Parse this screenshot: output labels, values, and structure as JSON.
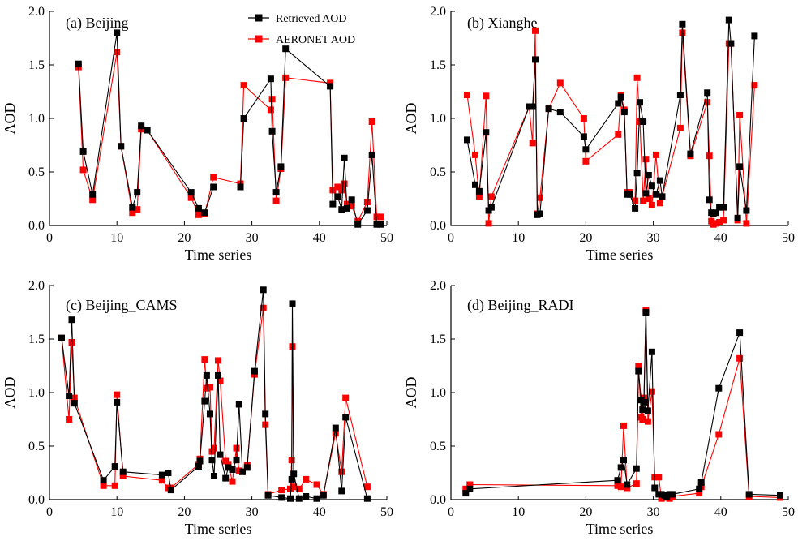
{
  "colors": {
    "retrieved": "#000000",
    "aeronet": "#ff0000"
  },
  "legend": {
    "entries": [
      "Retrieved AOD",
      "AERONET AOD"
    ]
  },
  "chart_data": [
    {
      "type": "line",
      "title": "(a) Beijing",
      "xlabel": "Time series",
      "ylabel": "AOD",
      "xlim": [
        0,
        50
      ],
      "ylim": [
        0,
        2.0
      ],
      "xticks": [
        0,
        10,
        20,
        30,
        40,
        50
      ],
      "yticks": [
        0.0,
        0.5,
        1.0,
        1.5,
        2.0
      ],
      "legend": "top-center",
      "series": [
        {
          "name": "Retrieved AOD",
          "x": [
            4.3,
            5,
            6.4,
            10,
            10.6,
            12.3,
            13,
            13.6,
            14.5,
            21,
            22.1,
            23,
            24.3,
            28.3,
            28.8,
            32.8,
            33,
            33.6,
            34.3,
            35,
            41.6,
            42,
            42.7,
            43.3,
            43.7,
            44.1,
            44.8,
            45.7,
            47.1,
            47.8,
            48.5,
            49.1
          ],
          "y": [
            1.51,
            0.69,
            0.29,
            1.8,
            0.74,
            0.17,
            0.31,
            0.93,
            0.89,
            0.31,
            0.16,
            0.12,
            0.36,
            0.36,
            1.0,
            1.37,
            0.88,
            0.31,
            0.55,
            1.65,
            1.3,
            0.2,
            0.27,
            0.15,
            0.63,
            0.16,
            0.24,
            0.01,
            0.14,
            0.66,
            0.01,
            0.01
          ]
        },
        {
          "name": "AERONET AOD",
          "x": [
            4.3,
            5,
            6.4,
            10,
            10.6,
            12.3,
            13,
            13.6,
            14.5,
            21,
            22.1,
            23,
            24.3,
            28.3,
            28.8,
            32.8,
            33,
            33.6,
            34.3,
            35,
            41.6,
            42,
            42.7,
            43.3,
            43.7,
            44.1,
            44.8,
            45.7,
            47.1,
            47.8,
            48.5,
            49.1
          ],
          "y": [
            1.48,
            0.52,
            0.24,
            1.62,
            0.74,
            0.12,
            0.15,
            0.9,
            0.89,
            0.26,
            0.1,
            0.11,
            0.45,
            0.39,
            1.31,
            1.08,
            1.18,
            0.23,
            0.53,
            1.38,
            1.33,
            0.33,
            0.36,
            0.33,
            0.39,
            0.2,
            0.18,
            0.04,
            0.22,
            0.97,
            0.08,
            0.08
          ]
        }
      ]
    },
    {
      "type": "line",
      "title": "(b) Xianghe",
      "xlabel": "Time series",
      "ylabel": "AOD",
      "xlim": [
        0,
        50
      ],
      "ylim": [
        0,
        2.0
      ],
      "xticks": [
        0,
        10,
        20,
        30,
        40,
        50
      ],
      "yticks": [
        0.0,
        0.5,
        1.0,
        1.5,
        2.0
      ],
      "series": [
        {
          "name": "Retrieved AOD",
          "x": [
            2.4,
            3.6,
            4.2,
            5.2,
            5.6,
            6,
            11.6,
            12.1,
            12.5,
            12.8,
            13.2,
            14.5,
            16.2,
            19.7,
            20,
            24.8,
            25.2,
            25.7,
            26.1,
            26.5,
            27.3,
            27.6,
            28,
            28.5,
            28.9,
            29.3,
            29.8,
            30.4,
            31,
            31.3,
            34,
            34.3,
            35.5,
            38,
            38.3,
            38.6,
            38.9,
            39.3,
            39.8,
            40.4,
            41.2,
            41.5,
            42.5,
            42.8,
            43.8,
            45
          ],
          "y": [
            0.8,
            0.38,
            0.32,
            0.87,
            0.14,
            0.17,
            1.11,
            1.11,
            1.55,
            0.1,
            0.11,
            1.09,
            1.06,
            0.83,
            0.71,
            1.14,
            1.2,
            1.06,
            0.29,
            0.29,
            0.16,
            0.49,
            1.15,
            0.97,
            0.3,
            0.47,
            0.37,
            0.29,
            0.42,
            0.27,
            1.22,
            1.88,
            0.67,
            1.24,
            0.24,
            0.12,
            0.11,
            0.12,
            0.17,
            0.17,
            1.92,
            1.7,
            0.07,
            0.55,
            0.14,
            1.77
          ]
        },
        {
          "name": "AERONET AOD",
          "x": [
            2.4,
            3.6,
            4.2,
            5.2,
            5.6,
            6,
            11.6,
            12.1,
            12.5,
            12.8,
            13.2,
            14.5,
            16.2,
            19.7,
            20,
            24.8,
            25.2,
            25.7,
            26.1,
            26.5,
            27.3,
            27.6,
            28,
            28.5,
            28.9,
            29.3,
            29.8,
            30.4,
            31,
            31.3,
            34,
            34.3,
            35.5,
            38,
            38.3,
            38.6,
            38.9,
            39.3,
            39.8,
            40.4,
            41.2,
            41.5,
            42.5,
            42.8,
            43.8,
            45
          ],
          "y": [
            1.22,
            0.66,
            0.27,
            1.21,
            0.02,
            0.27,
            1.11,
            0.77,
            1.82,
            0.11,
            0.26,
            1.09,
            1.33,
            1.0,
            0.6,
            0.85,
            1.22,
            1.08,
            0.31,
            0.31,
            0.23,
            1.38,
            0.97,
            0.23,
            0.62,
            0.25,
            0.19,
            0.66,
            0.21,
            0.27,
            0.91,
            1.8,
            0.65,
            1.15,
            0.65,
            0.04,
            0.01,
            0.02,
            0.03,
            0.05,
            1.7,
            1.7,
            0.05,
            1.03,
            0.02,
            1.31
          ]
        }
      ]
    },
    {
      "type": "line",
      "title": "(c) Beijing_CAMS",
      "xlabel": "Time series",
      "ylabel": "AOD",
      "xlim": [
        0,
        50
      ],
      "ylim": [
        0,
        2.0
      ],
      "xticks": [
        0,
        10,
        20,
        30,
        40,
        50
      ],
      "yticks": [
        0.0,
        0.5,
        1.0,
        1.5,
        2.0
      ],
      "series": [
        {
          "name": "Retrieved AOD",
          "x": [
            1.8,
            2.9,
            3.3,
            3.7,
            8,
            9.7,
            10,
            10.9,
            16.7,
            17.6,
            18,
            22.1,
            22.3,
            23,
            23.3,
            23.8,
            24.1,
            24.4,
            25,
            25.3,
            26.1,
            26.5,
            27.1,
            27.7,
            28.1,
            28.6,
            29.3,
            30.4,
            31.7,
            32,
            32.4,
            34.4,
            35.7,
            35.9,
            36,
            36.2,
            37,
            38,
            39.6,
            40.6,
            42.4,
            43.3,
            43.9,
            47.1
          ],
          "y": [
            1.51,
            0.97,
            1.68,
            0.9,
            0.18,
            0.31,
            0.91,
            0.26,
            0.23,
            0.25,
            0.09,
            0.31,
            0.36,
            0.92,
            1.16,
            0.8,
            0.37,
            0.22,
            1.16,
            0.42,
            0.2,
            0.3,
            0.28,
            0.37,
            0.89,
            0.26,
            0.3,
            1.2,
            1.96,
            0.8,
            0.04,
            0.02,
            0.01,
            0.19,
            1.83,
            0.24,
            0.01,
            0.03,
            0.01,
            0.04,
            0.67,
            0.08,
            0.77,
            0.01
          ]
        },
        {
          "name": "AERONET AOD",
          "x": [
            1.8,
            2.9,
            3.3,
            3.7,
            8,
            9.7,
            10,
            10.9,
            16.7,
            17.6,
            18,
            22.1,
            22.3,
            23,
            23.3,
            23.8,
            24.1,
            24.4,
            25,
            25.3,
            26.1,
            26.5,
            27.1,
            27.7,
            28.1,
            28.6,
            29.3,
            30.4,
            31.7,
            32,
            32.4,
            34.4,
            35.7,
            35.9,
            36,
            36.2,
            37,
            38,
            39.6,
            40.6,
            42.4,
            43.3,
            43.9,
            47.1
          ],
          "y": [
            1.51,
            0.75,
            1.47,
            0.95,
            0.13,
            0.13,
            0.98,
            0.22,
            0.18,
            0.11,
            0.11,
            0.33,
            0.38,
            1.31,
            1.04,
            1.05,
            0.45,
            0.48,
            1.3,
            1.11,
            0.36,
            0.33,
            0.17,
            0.48,
            0.27,
            0.26,
            0.32,
            1.17,
            1.79,
            0.7,
            0.05,
            0.09,
            0.1,
            0.37,
            1.43,
            0.12,
            0.1,
            0.19,
            0.14,
            0.05,
            0.62,
            0.26,
            0.95,
            0.12
          ]
        }
      ]
    },
    {
      "type": "line",
      "title": "(d) Beijing_RADI",
      "xlabel": "Time series",
      "ylabel": "AOD",
      "xlim": [
        0,
        50
      ],
      "ylim": [
        0,
        2.0
      ],
      "xticks": [
        0,
        10,
        20,
        30,
        40,
        50
      ],
      "yticks": [
        0.0,
        0.5,
        1.0,
        1.5,
        2.0
      ],
      "series": [
        {
          "name": "Retrieved AOD",
          "x": [
            2.2,
            2.8,
            24.7,
            25.2,
            25.6,
            26.1,
            27.5,
            27.8,
            28.2,
            28.4,
            28.6,
            28.9,
            29.2,
            29.8,
            30.2,
            30.8,
            31.2,
            31.6,
            32,
            32.4,
            32.8,
            36.8,
            37.1,
            39.7,
            42.8,
            44.2,
            48.8
          ],
          "y": [
            0.06,
            0.1,
            0.18,
            0.3,
            0.37,
            0.14,
            0.29,
            1.2,
            0.93,
            0.84,
            0.91,
            1.75,
            0.83,
            1.38,
            0.11,
            0.05,
            0.05,
            0.04,
            0.03,
            0.05,
            0.05,
            0.1,
            0.16,
            1.04,
            1.56,
            0.05,
            0.04
          ]
        },
        {
          "name": "AERONET AOD",
          "x": [
            2.2,
            2.8,
            24.7,
            25.2,
            25.6,
            26.1,
            27.5,
            27.8,
            28.2,
            28.4,
            28.6,
            28.9,
            29.2,
            29.8,
            30.2,
            30.8,
            31.2,
            31.6,
            32,
            32.4,
            32.8,
            36.8,
            37.1,
            39.7,
            42.8,
            44.2,
            48.8
          ],
          "y": [
            0.1,
            0.14,
            0.13,
            0.12,
            0.69,
            0.11,
            0.15,
            1.25,
            0.77,
            0.75,
            0.95,
            1.77,
            0.73,
            1.01,
            0.21,
            0.21,
            0.01,
            0.03,
            0.02,
            0.01,
            0.03,
            0.06,
            0.12,
            0.61,
            1.32,
            0.03,
            0.02
          ]
        }
      ]
    }
  ]
}
